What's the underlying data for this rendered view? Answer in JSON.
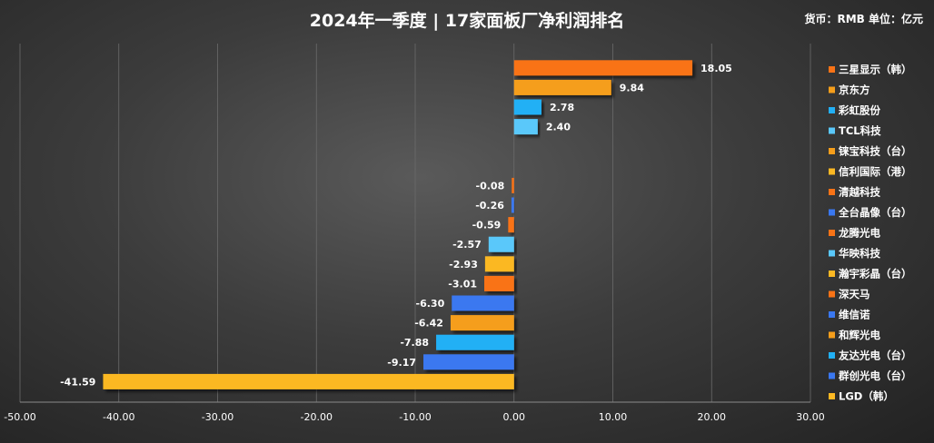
{
  "title": "2024年一季度 | 17家面板厂净利润排名",
  "unit_note": "货币：RMB  单位：亿元",
  "chart_data": {
    "type": "bar",
    "orientation": "horizontal",
    "title": "2024年一季度 | 17家面板厂净利润排名",
    "xlim": [
      -50,
      30
    ],
    "x_ticks": [
      "-50.00",
      "-40.00",
      "-30.00",
      "-20.00",
      "-10.00",
      "0.00",
      "10.00",
      "20.00",
      "30.00"
    ],
    "x_tick_values": [
      -50,
      -40,
      -30,
      -20,
      -10,
      0,
      10,
      20,
      30
    ],
    "legend_position": "right",
    "categories": [
      "三星显示（韩）",
      "京东方",
      "彩虹股份",
      "TCL科技",
      "铼宝科技（台）",
      "信利国际（港）",
      "清越科技",
      "全台晶像（台）",
      "龙腾光电",
      "华映科技",
      "瀚宇彩晶（台）",
      "深天马",
      "维信诺",
      "和辉光电",
      "友达光电（台）",
      "群创光电（台）",
      "LGD（韩）"
    ],
    "values": [
      18.05,
      9.84,
      2.78,
      2.4,
      null,
      null,
      -0.08,
      -0.26,
      -0.59,
      -2.57,
      -2.93,
      -3.01,
      -6.3,
      -6.42,
      -7.88,
      -9.17,
      -41.59
    ],
    "labels": [
      "18.05",
      "9.84",
      "2.78",
      "2.40",
      "",
      "",
      "-0.08",
      "-0.26",
      "-0.59",
      "-2.57",
      "-2.93",
      "-3.01",
      "-6.30",
      "-6.42",
      "-7.88",
      "-9.17",
      "-41.59"
    ],
    "colors": [
      "#f97316",
      "#f59e1b",
      "#22b0f5",
      "#5ac8fa",
      "#f59e1b",
      "#fbb823",
      "#f97316",
      "#3a78f0",
      "#f97316",
      "#5ac8fa",
      "#fbb823",
      "#f97316",
      "#3a78f0",
      "#f59e1b",
      "#22b0f5",
      "#3a78f0",
      "#fbb823"
    ]
  }
}
